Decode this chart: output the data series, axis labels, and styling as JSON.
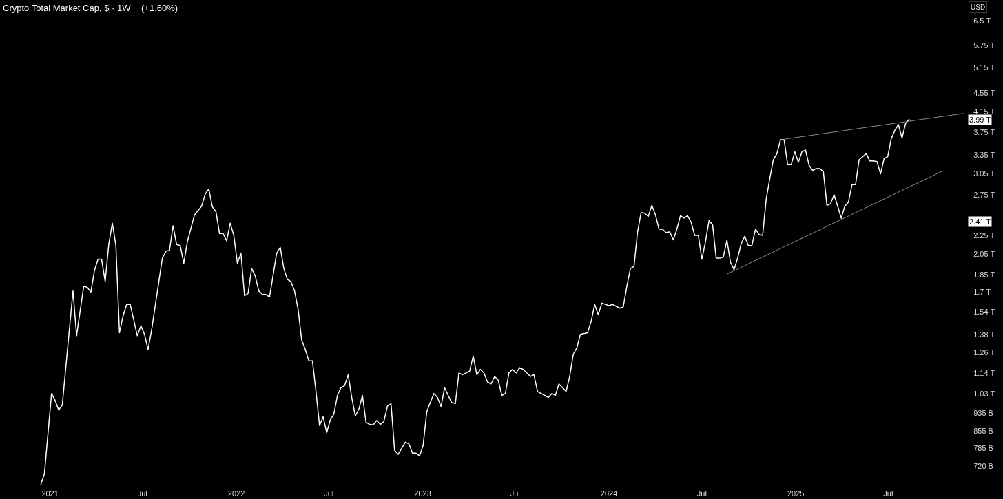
{
  "chart_data": {
    "type": "line",
    "title": "Crypto Total Market Cap, $ · 1W",
    "subtitle": "(+1.60%)",
    "ylabel": "USD",
    "log": true,
    "xlim": [
      "2020-09-25",
      "2025-11-30"
    ],
    "xticks": [
      {
        "value": "2021-01-01",
        "label": "2021"
      },
      {
        "value": "2021-07-01",
        "label": "Jul"
      },
      {
        "value": "2022-01-01",
        "label": "2022"
      },
      {
        "value": "2022-07-01",
        "label": "Jul"
      },
      {
        "value": "2023-01-01",
        "label": "2023"
      },
      {
        "value": "2023-07-01",
        "label": "Jul"
      },
      {
        "value": "2024-01-01",
        "label": "2024"
      },
      {
        "value": "2024-07-01",
        "label": "Jul"
      },
      {
        "value": "2025-01-01",
        "label": "2025"
      },
      {
        "value": "2025-07-01",
        "label": "Jul"
      }
    ],
    "ylim": [
      650000000000.0,
      7200000000000.0
    ],
    "yticks": [
      {
        "value": 720000000000.0,
        "label": "720 B"
      },
      {
        "value": 785000000000.0,
        "label": "785 B"
      },
      {
        "value": 855000000000.0,
        "label": "855 B"
      },
      {
        "value": 935000000000.0,
        "label": "935 B"
      },
      {
        "value": 1030000000000.0,
        "label": "1.03 T"
      },
      {
        "value": 1140000000000.0,
        "label": "1.14 T"
      },
      {
        "value": 1260000000000.0,
        "label": "1.26 T"
      },
      {
        "value": 1380000000000.0,
        "label": "1.38 T"
      },
      {
        "value": 1540000000000.0,
        "label": "1.54 T"
      },
      {
        "value": 1700000000000.0,
        "label": "1.7 T"
      },
      {
        "value": 1850000000000.0,
        "label": "1.85 T"
      },
      {
        "value": 2050000000000.0,
        "label": "2.05 T"
      },
      {
        "value": 2250000000000.0,
        "label": "2.25 T"
      },
      {
        "value": 2750000000000.0,
        "label": "2.75 T"
      },
      {
        "value": 3050000000000.0,
        "label": "3.05 T"
      },
      {
        "value": 3350000000000.0,
        "label": "3.35 T"
      },
      {
        "value": 3750000000000.0,
        "label": "3.75 T"
      },
      {
        "value": 4150000000000.0,
        "label": "4.15 T"
      },
      {
        "value": 4550000000000.0,
        "label": "4.55 T"
      },
      {
        "value": 5150000000000.0,
        "label": "5.15 T"
      },
      {
        "value": 5750000000000.0,
        "label": "5.75 T"
      },
      {
        "value": 6500000000000.0,
        "label": "6.5 T"
      }
    ],
    "annotations": [
      {
        "text": "3.99 T",
        "y": 3990000000000.0
      },
      {
        "text": "2.41 T",
        "y": 2410000000000.0
      }
    ],
    "series": [
      {
        "color": "#ffffff",
        "x": [
          "2020-12-14",
          "2020-12-21",
          "2021-01-04",
          "2021-01-11",
          "2021-01-18",
          "2021-01-25",
          "2021-02-15",
          "2021-02-22",
          "2021-03-08",
          "2021-03-15",
          "2021-03-22",
          "2021-03-29",
          "2021-04-05",
          "2021-04-12",
          "2021-04-19",
          "2021-04-26",
          "2021-05-03",
          "2021-05-10",
          "2021-05-17",
          "2021-05-24",
          "2021-05-31",
          "2021-06-07",
          "2021-06-14",
          "2021-06-21",
          "2021-06-28",
          "2021-07-05",
          "2021-07-12",
          "2021-07-19",
          "2021-08-09",
          "2021-08-16",
          "2021-08-23",
          "2021-08-30",
          "2021-09-06",
          "2021-09-13",
          "2021-09-20",
          "2021-09-27",
          "2021-10-11",
          "2021-10-25",
          "2021-11-01",
          "2021-11-08",
          "2021-11-15",
          "2021-11-22",
          "2021-11-29",
          "2021-12-06",
          "2021-12-13",
          "2021-12-20",
          "2021-12-27",
          "2022-01-03",
          "2022-01-10",
          "2022-01-17",
          "2022-01-24",
          "2022-01-31",
          "2022-02-07",
          "2022-02-14",
          "2022-02-21",
          "2022-02-28",
          "2022-03-07",
          "2022-03-21",
          "2022-03-28",
          "2022-04-04",
          "2022-04-11",
          "2022-04-18",
          "2022-04-25",
          "2022-05-02",
          "2022-05-09",
          "2022-05-16",
          "2022-05-23",
          "2022-05-30",
          "2022-06-06",
          "2022-06-13",
          "2022-06-20",
          "2022-06-27",
          "2022-07-04",
          "2022-07-11",
          "2022-07-18",
          "2022-07-25",
          "2022-08-01",
          "2022-08-08",
          "2022-08-15",
          "2022-08-22",
          "2022-08-29",
          "2022-09-05",
          "2022-09-12",
          "2022-09-19",
          "2022-09-26",
          "2022-10-03",
          "2022-10-10",
          "2022-10-17",
          "2022-10-24",
          "2022-10-31",
          "2022-11-07",
          "2022-11-14",
          "2022-11-28",
          "2022-12-05",
          "2022-12-12",
          "2022-12-19",
          "2022-12-26",
          "2023-01-02",
          "2023-01-09",
          "2023-01-16",
          "2023-01-23",
          "2023-01-30",
          "2023-02-06",
          "2023-02-13",
          "2023-02-20",
          "2023-02-27",
          "2023-03-06",
          "2023-03-13",
          "2023-03-20",
          "2023-03-27",
          "2023-04-03",
          "2023-04-10",
          "2023-04-17",
          "2023-04-24",
          "2023-05-01",
          "2023-05-08",
          "2023-05-15",
          "2023-05-22",
          "2023-05-29",
          "2023-06-05",
          "2023-06-12",
          "2023-06-19",
          "2023-06-26",
          "2023-07-03",
          "2023-07-10",
          "2023-07-17",
          "2023-07-24",
          "2023-07-31",
          "2023-08-07",
          "2023-08-14",
          "2023-08-21",
          "2023-08-28",
          "2023-09-04",
          "2023-09-11",
          "2023-09-18",
          "2023-09-25",
          "2023-10-02",
          "2023-10-09",
          "2023-10-16",
          "2023-10-23",
          "2023-10-30",
          "2023-11-06",
          "2023-11-20",
          "2023-11-27",
          "2023-12-04",
          "2023-12-11",
          "2023-12-18",
          "2024-01-01",
          "2024-01-08",
          "2024-01-22",
          "2024-01-29",
          "2024-02-05",
          "2024-02-12",
          "2024-02-19",
          "2024-02-26",
          "2024-03-04",
          "2024-03-11",
          "2024-03-18",
          "2024-03-25",
          "2024-04-01",
          "2024-04-08",
          "2024-04-15",
          "2024-04-22",
          "2024-04-29",
          "2024-05-06",
          "2024-05-13",
          "2024-05-20",
          "2024-05-27",
          "2024-06-03",
          "2024-06-10",
          "2024-06-17",
          "2024-06-24",
          "2024-07-01",
          "2024-07-08",
          "2024-07-15",
          "2024-07-22",
          "2024-07-29",
          "2024-08-05",
          "2024-08-12",
          "2024-08-19",
          "2024-08-26",
          "2024-09-02",
          "2024-09-09",
          "2024-09-16",
          "2024-09-23",
          "2024-09-30",
          "2024-10-07",
          "2024-10-14",
          "2024-10-21",
          "2024-10-28",
          "2024-11-04",
          "2024-11-11",
          "2024-11-18",
          "2024-11-25",
          "2024-12-02",
          "2024-12-09",
          "2024-12-16",
          "2024-12-23",
          "2024-12-30",
          "2025-01-06",
          "2025-01-13",
          "2025-01-20",
          "2025-01-27",
          "2025-02-03",
          "2025-02-10",
          "2025-02-17",
          "2025-02-24",
          "2025-03-03",
          "2025-03-10",
          "2025-03-17",
          "2025-03-24",
          "2025-03-31",
          "2025-04-07",
          "2025-04-14",
          "2025-04-21",
          "2025-04-28",
          "2025-05-05",
          "2025-05-12",
          "2025-05-19",
          "2025-05-26",
          "2025-06-02",
          "2025-06-09",
          "2025-06-16",
          "2025-06-23",
          "2025-06-30",
          "2025-07-07",
          "2025-07-14",
          "2025-07-21",
          "2025-07-28",
          "2025-08-04",
          "2025-08-11"
        ],
        "values": [
          657000000000.0,
          693000000000.0,
          1030000000000.0,
          995000000000.0,
          949000000000.0,
          973000000000.0,
          1710000000000.0,
          1370000000000.0,
          1750000000000.0,
          1740000000000.0,
          1700000000000.0,
          1890000000000.0,
          2000000000000.0,
          2000000000000.0,
          1790000000000.0,
          2150000000000.0,
          2390000000000.0,
          2140000000000.0,
          1390000000000.0,
          1510000000000.0,
          1600000000000.0,
          1600000000000.0,
          1480000000000.0,
          1370000000000.0,
          1440000000000.0,
          1380000000000.0,
          1280000000000.0,
          1410000000000.0,
          2010000000000.0,
          2080000000000.0,
          2090000000000.0,
          2360000000000.0,
          2150000000000.0,
          2140000000000.0,
          1960000000000.0,
          2180000000000.0,
          2490000000000.0,
          2600000000000.0,
          2760000000000.0,
          2830000000000.0,
          2590000000000.0,
          2530000000000.0,
          2270000000000.0,
          2270000000000.0,
          2190000000000.0,
          2390000000000.0,
          2250000000000.0,
          1960000000000.0,
          2060000000000.0,
          1670000000000.0,
          1690000000000.0,
          1910000000000.0,
          1840000000000.0,
          1710000000000.0,
          1680000000000.0,
          1680000000000.0,
          1660000000000.0,
          2060000000000.0,
          2120000000000.0,
          1910000000000.0,
          1810000000000.0,
          1790000000000.0,
          1710000000000.0,
          1560000000000.0,
          1340000000000.0,
          1280000000000.0,
          1210000000000.0,
          1210000000000.0,
          1040000000000.0,
          879000000000.0,
          918000000000.0,
          848000000000.0,
          904000000000.0,
          930000000000.0,
          1020000000000.0,
          1060000000000.0,
          1070000000000.0,
          1130000000000.0,
          1010000000000.0,
          922000000000.0,
          953000000000.0,
          1020000000000.0,
          894000000000.0,
          884000000000.0,
          882000000000.0,
          901000000000.0,
          884000000000.0,
          897000000000.0,
          968000000000.0,
          979000000000.0,
          778000000000.0,
          763000000000.0,
          810000000000.0,
          803000000000.0,
          767000000000.0,
          767000000000.0,
          757000000000.0,
          798000000000.0,
          941000000000.0,
          986000000000.0,
          1030000000000.0,
          1010000000000.0,
          966000000000.0,
          1060000000000.0,
          1020000000000.0,
          984000000000.0,
          980000000000.0,
          1140000000000.0,
          1130000000000.0,
          1140000000000.0,
          1150000000000.0,
          1240000000000.0,
          1130000000000.0,
          1160000000000.0,
          1140000000000.0,
          1090000000000.0,
          1080000000000.0,
          1120000000000.0,
          1100000000000.0,
          1020000000000.0,
          1030000000000.0,
          1140000000000.0,
          1160000000000.0,
          1140000000000.0,
          1170000000000.0,
          1160000000000.0,
          1140000000000.0,
          1120000000000.0,
          1130000000000.0,
          1040000000000.0,
          1030000000000.0,
          1020000000000.0,
          1010000000000.0,
          1030000000000.0,
          1020000000000.0,
          1080000000000.0,
          1060000000000.0,
          1040000000000.0,
          1120000000000.0,
          1250000000000.0,
          1290000000000.0,
          1380000000000.0,
          1390000000000.0,
          1470000000000.0,
          1600000000000.0,
          1520000000000.0,
          1610000000000.0,
          1590000000000.0,
          1600000000000.0,
          1570000000000.0,
          1580000000000.0,
          1750000000000.0,
          1910000000000.0,
          1930000000000.0,
          2290000000000.0,
          2520000000000.0,
          2510000000000.0,
          2470000000000.0,
          2610000000000.0,
          2490000000000.0,
          2320000000000.0,
          2320000000000.0,
          2280000000000.0,
          2290000000000.0,
          2200000000000.0,
          2320000000000.0,
          2480000000000.0,
          2450000000000.0,
          2480000000000.0,
          2400000000000.0,
          2250000000000.0,
          2250000000000.0,
          2000000000000.0,
          2180000000000.0,
          2420000000000.0,
          2370000000000.0,
          2010000000000.0,
          2010000000000.0,
          2020000000000.0,
          2200000000000.0,
          1970000000000.0,
          1900000000000.0,
          2010000000000.0,
          2160000000000.0,
          2240000000000.0,
          2140000000000.0,
          2140000000000.0,
          2320000000000.0,
          2260000000000.0,
          2250000000000.0,
          2690000000000.0,
          2980000000000.0,
          3270000000000.0,
          3370000000000.0,
          3610000000000.0,
          3610000000000.0,
          3190000000000.0,
          3190000000000.0,
          3400000000000.0,
          3230000000000.0,
          3400000000000.0,
          3430000000000.0,
          3180000000000.0,
          3100000000000.0,
          3130000000000.0,
          3130000000000.0,
          3080000000000.0,
          2610000000000.0,
          2630000000000.0,
          2750000000000.0,
          2600000000000.0,
          2450000000000.0,
          2600000000000.0,
          2650000000000.0,
          2890000000000.0,
          2890000000000.0,
          3270000000000.0,
          3320000000000.0,
          3370000000000.0,
          3250000000000.0,
          3250000000000.0,
          3240000000000.0,
          3050000000000.0,
          3290000000000.0,
          3320000000000.0,
          3630000000000.0,
          3780000000000.0,
          3890000000000.0,
          3640000000000.0,
          3910000000000.0,
          3990000000000.0
        ]
      },
      {
        "color": "#8c8c8c",
        "x": [
          "2024-12-10",
          "2025-11-25"
        ],
        "values": [
          3620000000000.0,
          4110000000000.0
        ]
      },
      {
        "color": "#8c8c8c",
        "x": [
          "2024-08-20",
          "2025-10-15"
        ],
        "values": [
          1860000000000.0,
          3090000000000.0
        ]
      }
    ]
  }
}
